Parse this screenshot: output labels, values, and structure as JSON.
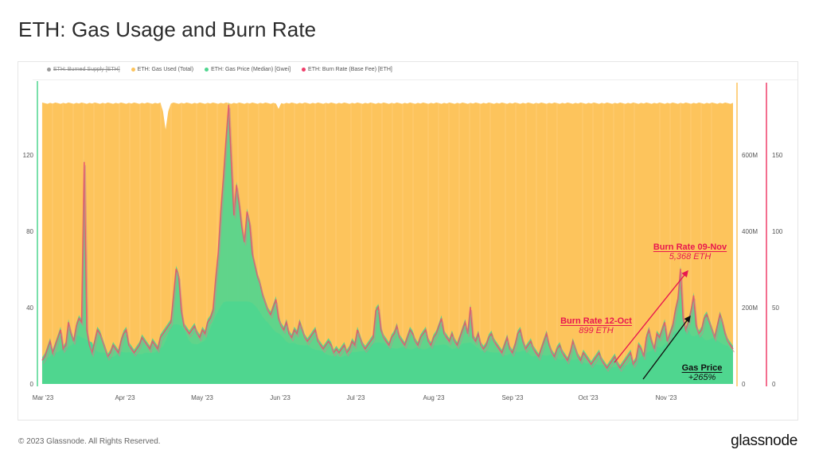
{
  "header": {
    "title": "ETH: Gas Usage and Burn Rate"
  },
  "legend": [
    {
      "label": "ETH: Burned Supply [ETH]",
      "color": "#9a9a9a",
      "disabled": true
    },
    {
      "label": "ETH: Gas Used (Total)",
      "color": "#fdc45c",
      "disabled": false
    },
    {
      "label": "ETH: Gas Price (Median) [Gwei]",
      "color": "#4fd68f",
      "disabled": false
    },
    {
      "label": "ETH: Burn Rate (Base Fee) [ETH]",
      "color": "#ef3e6a",
      "disabled": false
    }
  ],
  "annotations": {
    "burn_oct": {
      "heading": "Burn Rate 12-Oct",
      "value": "899 ETH",
      "color": "#e8174f"
    },
    "burn_nov": {
      "heading": "Burn Rate 09-Nov",
      "value": "5,368 ETH",
      "color": "#e8174f"
    },
    "gas_price": {
      "heading": "Gas Price",
      "value": "+265%",
      "color": "#111111"
    }
  },
  "footer": {
    "copyright": "© 2023 Glassnode. All Rights Reserved.",
    "brand": "glassnode"
  },
  "colors": {
    "gas_used": "#fdc45c",
    "gas_price": "#4fd68f",
    "burn_rate": "#ea4f6b",
    "left_axis": "#4fd68f",
    "right_axis_gas": "#fdc45c",
    "right_axis_burn": "#ef3e6a"
  },
  "chart_data": {
    "type": "area",
    "title": "ETH: Gas Usage and Burn Rate",
    "x_ticks": [
      "Mar '23",
      "Apr '23",
      "May '23",
      "Jun '23",
      "Jul '23",
      "Aug '23",
      "Sep '23",
      "Oct '23",
      "Nov '23"
    ],
    "x_range": [
      "2023-02-28",
      "2023-11-29"
    ],
    "y_axes": [
      {
        "name": "ETH: Gas Price (Median) [Gwei]",
        "side": "left",
        "ticks": [
          0,
          40,
          80,
          120
        ],
        "range": [
          0,
          150
        ]
      },
      {
        "name": "ETH: Gas Used (Total)",
        "side": "right",
        "ticks": [
          "0",
          "200M",
          "400M",
          "600M"
        ],
        "range": [
          0,
          750000000
        ]
      },
      {
        "name": "ETH: Burn Rate (Base Fee) [ETH]",
        "side": "right",
        "ticks": [
          0,
          50,
          100,
          150
        ],
        "range": [
          0,
          187.5
        ]
      }
    ],
    "legend_position": "top",
    "grid": false,
    "series": [
      {
        "name": "ETH: Gas Used (Total)",
        "approx_level": "~740M per day, stable (dip ~700M around mid-Apr)"
      },
      {
        "name": "ETH: Gas Price (Median) [Gwei]",
        "points": [
          [
            "Mar '23",
            15
          ],
          [
            "early Mar",
            25
          ],
          [
            "mid Mar spike",
            118
          ],
          [
            "late Mar",
            22
          ],
          [
            "Apr '23",
            20
          ],
          [
            "mid Apr",
            28
          ],
          [
            "late Apr spike",
            62
          ],
          [
            "early May",
            60
          ],
          [
            "May peak",
            148
          ],
          [
            "mid May",
            70
          ],
          [
            "late May",
            35
          ],
          [
            "Jun '23",
            22
          ],
          [
            "mid Jun",
            18
          ],
          [
            "Jul '23",
            38
          ],
          [
            "mid Jul",
            22
          ],
          [
            "Aug '23",
            30
          ],
          [
            "late Aug",
            42
          ],
          [
            "Sep '23",
            20
          ],
          [
            "mid Sep",
            18
          ],
          [
            "Oct '23",
            12
          ],
          [
            "12-Oct",
            8
          ],
          [
            "late Oct",
            20
          ],
          [
            "Nov '23",
            28
          ],
          [
            "09-Nov",
            62
          ],
          [
            "mid Nov",
            45
          ],
          [
            "late Nov",
            35
          ]
        ]
      },
      {
        "name": "ETH: Burn Rate (Base Fee) [ETH]",
        "points": [
          [
            "12-Oct",
            899
          ],
          [
            "09-Nov",
            5368
          ]
        ]
      }
    ],
    "annotations": [
      {
        "text": "Burn Rate 12-Oct",
        "sub": "899 ETH"
      },
      {
        "text": "Burn Rate 09-Nov",
        "sub": "5,368 ETH"
      },
      {
        "text": "Gas Price",
        "sub": "+265%"
      }
    ],
    "gas_price_profile": [
      14,
      16,
      20,
      24,
      18,
      22,
      26,
      30,
      20,
      22,
      34,
      28,
      24,
      32,
      36,
      34,
      118,
      30,
      22,
      18,
      24,
      30,
      28,
      24,
      20,
      16,
      18,
      22,
      20,
      18,
      24,
      28,
      30,
      22,
      20,
      18,
      20,
      22,
      26,
      24,
      22,
      20,
      24,
      22,
      20,
      26,
      28,
      30,
      32,
      34,
      48,
      62,
      58,
      40,
      32,
      30,
      28,
      30,
      32,
      28,
      26,
      30,
      28,
      34,
      36,
      40,
      56,
      70,
      92,
      110,
      130,
      148,
      118,
      90,
      106,
      96,
      84,
      76,
      92,
      86,
      70,
      64,
      58,
      54,
      48,
      44,
      40,
      38,
      42,
      46,
      36,
      32,
      30,
      34,
      28,
      26,
      30,
      28,
      34,
      30,
      26,
      24,
      26,
      28,
      30,
      24,
      22,
      20,
      22,
      24,
      22,
      18,
      20,
      18,
      20,
      22,
      18,
      20,
      24,
      22,
      30,
      26,
      22,
      20,
      22,
      24,
      26,
      40,
      42,
      30,
      26,
      24,
      22,
      26,
      28,
      32,
      26,
      24,
      22,
      26,
      30,
      28,
      24,
      22,
      26,
      28,
      30,
      24,
      22,
      26,
      28,
      32,
      36,
      28,
      26,
      24,
      28,
      24,
      22,
      26,
      30,
      34,
      28,
      42,
      26,
      24,
      28,
      22,
      20,
      22,
      26,
      28,
      24,
      22,
      20,
      18,
      22,
      26,
      20,
      18,
      22,
      28,
      30,
      24,
      20,
      22,
      24,
      20,
      18,
      16,
      20,
      24,
      28,
      22,
      18,
      16,
      20,
      22,
      18,
      16,
      14,
      18,
      24,
      20,
      16,
      14,
      18,
      16,
      14,
      12,
      14,
      16,
      18,
      14,
      12,
      10,
      12,
      14,
      16,
      12,
      10,
      12,
      14,
      16,
      18,
      12,
      14,
      22,
      20,
      16,
      26,
      30,
      24,
      20,
      28,
      26,
      30,
      34,
      24,
      28,
      32,
      40,
      46,
      62,
      36,
      30,
      34,
      40,
      48,
      32,
      28,
      30,
      36,
      38,
      34,
      30,
      26,
      32,
      38,
      34,
      28,
      24,
      22,
      20
    ]
  }
}
